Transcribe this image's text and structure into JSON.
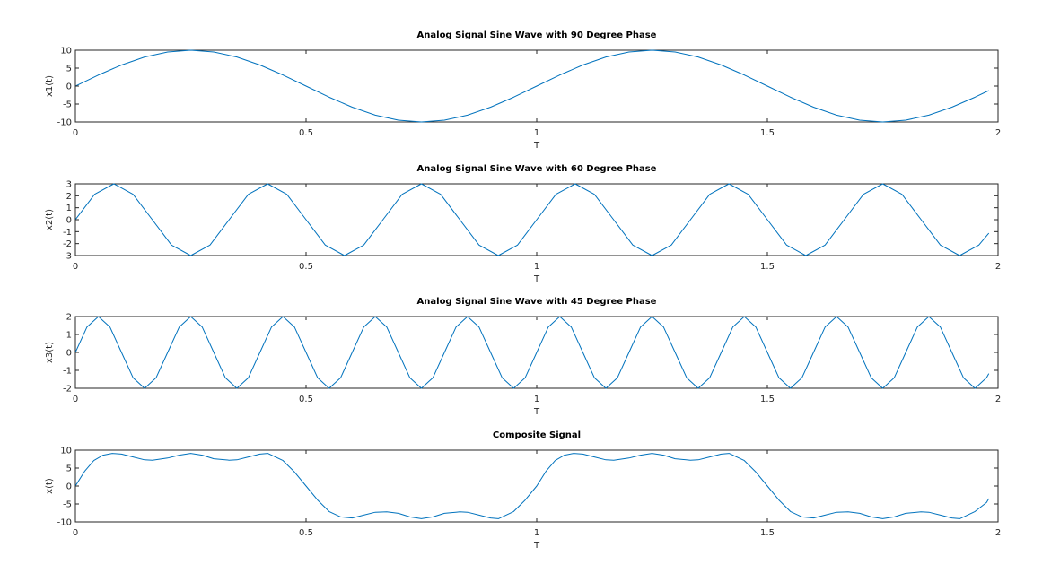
{
  "chart_data": [
    {
      "type": "line",
      "title": "Analog Signal Sine Wave with 90 Degree Phase",
      "xlabel": "T",
      "ylabel": "x1(t)",
      "xlim": [
        0,
        2
      ],
      "ylim": [
        -10,
        10
      ],
      "xticks": [
        0,
        0.5,
        1,
        1.5,
        2
      ],
      "xtick_labels": [
        "0",
        "0.5",
        "1",
        "1.5",
        "2"
      ],
      "yticks": [
        -10,
        -5,
        0,
        5,
        10
      ],
      "ytick_labels": [
        "-10",
        "-5",
        "0",
        "5",
        "10"
      ],
      "grid": false,
      "series": [
        {
          "color": "#0072bd",
          "x": [
            0,
            0.05,
            0.1,
            0.15,
            0.2,
            0.25,
            0.3,
            0.35,
            0.4,
            0.45,
            0.5,
            0.55,
            0.6,
            0.65,
            0.7,
            0.75,
            0.8,
            0.85,
            0.9,
            0.95,
            1.0,
            1.05,
            1.1,
            1.15,
            1.2,
            1.25,
            1.3,
            1.35,
            1.4,
            1.45,
            1.5,
            1.55,
            1.6,
            1.65,
            1.7,
            1.75,
            1.8,
            1.85,
            1.9,
            1.95,
            1.98
          ],
          "y": [
            0,
            3.09,
            5.88,
            8.09,
            9.51,
            10,
            9.51,
            8.09,
            5.88,
            3.09,
            0,
            -3.09,
            -5.88,
            -8.09,
            -9.51,
            -10,
            -9.51,
            -8.09,
            -5.88,
            -3.09,
            0,
            3.09,
            5.88,
            8.09,
            9.51,
            10,
            9.51,
            8.09,
            5.88,
            3.09,
            0,
            -3.09,
            -5.88,
            -8.09,
            -9.51,
            -10,
            -9.51,
            -8.09,
            -5.88,
            -3.09,
            -1.25
          ]
        }
      ]
    },
    {
      "type": "line",
      "title": "Analog Signal Sine Wave with 60 Degree Phase",
      "xlabel": "T",
      "ylabel": "x2(t)",
      "xlim": [
        0,
        2
      ],
      "ylim": [
        -3,
        3
      ],
      "xticks": [
        0,
        0.5,
        1,
        1.5,
        2
      ],
      "xtick_labels": [
        "0",
        "0.5",
        "1",
        "1.5",
        "2"
      ],
      "yticks": [
        -3,
        -2,
        -1,
        0,
        1,
        2,
        3
      ],
      "ytick_labels": [
        "-3",
        "-2",
        "-1",
        "0",
        "1",
        "2",
        "3"
      ],
      "grid": false,
      "series": [
        {
          "color": "#0072bd",
          "x": [
            0,
            0.0417,
            0.0833,
            0.125,
            0.1667,
            0.2083,
            0.25,
            0.2917,
            0.3333,
            0.375,
            0.4167,
            0.4583,
            0.5,
            0.5417,
            0.5833,
            0.625,
            0.6667,
            0.7083,
            0.75,
            0.7917,
            0.8333,
            0.875,
            0.9167,
            0.9583,
            1.0,
            1.0417,
            1.0833,
            1.125,
            1.1667,
            1.2083,
            1.25,
            1.2917,
            1.3333,
            1.375,
            1.4167,
            1.4583,
            1.5,
            1.5417,
            1.5833,
            1.625,
            1.6667,
            1.7083,
            1.75,
            1.7917,
            1.8333,
            1.875,
            1.9167,
            1.9583,
            1.98
          ],
          "y": [
            0,
            2.12,
            3,
            2.12,
            0,
            -2.12,
            -3,
            -2.12,
            0,
            2.12,
            3,
            2.12,
            0,
            -2.12,
            -3,
            -2.12,
            0,
            2.12,
            3,
            2.12,
            0,
            -2.12,
            -3,
            -2.12,
            0,
            2.12,
            3,
            2.12,
            0,
            -2.12,
            -3,
            -2.12,
            0,
            2.12,
            3,
            2.12,
            0,
            -2.12,
            -3,
            -2.12,
            0,
            2.12,
            3,
            2.12,
            0,
            -2.12,
            -3,
            -2.12,
            -1.13
          ]
        }
      ]
    },
    {
      "type": "line",
      "title": "Analog Signal Sine Wave with 45 Degree Phase",
      "xlabel": "T",
      "ylabel": "x3(t)",
      "xlim": [
        0,
        2
      ],
      "ylim": [
        -2,
        2
      ],
      "xticks": [
        0,
        0.5,
        1,
        1.5,
        2
      ],
      "xtick_labels": [
        "0",
        "0.5",
        "1",
        "1.5",
        "2"
      ],
      "yticks": [
        -2,
        -1,
        0,
        1,
        2
      ],
      "ytick_labels": [
        "-2",
        "-1",
        "0",
        "1",
        "2"
      ],
      "grid": false,
      "series": [
        {
          "color": "#0072bd",
          "x": [
            0,
            0.025,
            0.05,
            0.075,
            0.1,
            0.125,
            0.15,
            0.175,
            0.2,
            0.225,
            0.25,
            0.275,
            0.3,
            0.325,
            0.35,
            0.375,
            0.4,
            0.425,
            0.45,
            0.475,
            0.5,
            0.525,
            0.55,
            0.575,
            0.6,
            0.625,
            0.65,
            0.675,
            0.7,
            0.725,
            0.75,
            0.775,
            0.8,
            0.825,
            0.85,
            0.875,
            0.9,
            0.925,
            0.95,
            0.975,
            1.0,
            1.025,
            1.05,
            1.075,
            1.1,
            1.125,
            1.15,
            1.175,
            1.2,
            1.225,
            1.25,
            1.275,
            1.3,
            1.325,
            1.35,
            1.375,
            1.4,
            1.425,
            1.45,
            1.475,
            1.5,
            1.525,
            1.55,
            1.575,
            1.6,
            1.625,
            1.65,
            1.675,
            1.7,
            1.725,
            1.75,
            1.775,
            1.8,
            1.825,
            1.85,
            1.875,
            1.9,
            1.925,
            1.95,
            1.975,
            1.98
          ],
          "y": [
            0,
            1.41,
            2,
            1.41,
            0,
            -1.41,
            -2,
            -1.41,
            0,
            1.41,
            2,
            1.41,
            0,
            -1.41,
            -2,
            -1.41,
            0,
            1.41,
            2,
            1.41,
            0,
            -1.41,
            -2,
            -1.41,
            0,
            1.41,
            2,
            1.41,
            0,
            -1.41,
            -2,
            -1.41,
            0,
            1.41,
            2,
            1.41,
            0,
            -1.41,
            -2,
            -1.41,
            0,
            1.41,
            2,
            1.41,
            0,
            -1.41,
            -2,
            -1.41,
            0,
            1.41,
            2,
            1.41,
            0,
            -1.41,
            -2,
            -1.41,
            0,
            1.41,
            2,
            1.41,
            0,
            -1.41,
            -2,
            -1.41,
            0,
            1.41,
            2,
            1.41,
            0,
            -1.41,
            -2,
            -1.41,
            0,
            1.41,
            2,
            1.41,
            0,
            -1.41,
            -2,
            -1.41,
            -1.18
          ]
        }
      ]
    },
    {
      "type": "line",
      "title": "Composite Signal",
      "xlabel": "T",
      "ylabel": "x(t)",
      "xlim": [
        0,
        2
      ],
      "ylim": [
        -10,
        10
      ],
      "xticks": [
        0,
        0.5,
        1,
        1.5,
        2
      ],
      "xtick_labels": [
        "0",
        "0.5",
        "1",
        "1.5",
        "2"
      ],
      "yticks": [
        -10,
        -5,
        0,
        5,
        10
      ],
      "ytick_labels": [
        "-10",
        "-5",
        "0",
        "5",
        "10"
      ],
      "grid": false,
      "series": [
        {
          "color": "#0072bd",
          "x": [
            0,
            0.02,
            0.04,
            0.06,
            0.08,
            0.1,
            0.125,
            0.15,
            0.167,
            0.2,
            0.225,
            0.25,
            0.275,
            0.3,
            0.333,
            0.35,
            0.375,
            0.4,
            0.417,
            0.45,
            0.475,
            0.5,
            0.525,
            0.55,
            0.575,
            0.6,
            0.625,
            0.65,
            0.675,
            0.7,
            0.725,
            0.75,
            0.775,
            0.8,
            0.833,
            0.85,
            0.875,
            0.9,
            0.917,
            0.95,
            0.975,
            1.0,
            1.02,
            1.04,
            1.06,
            1.08,
            1.1,
            1.125,
            1.15,
            1.167,
            1.2,
            1.225,
            1.25,
            1.275,
            1.3,
            1.333,
            1.35,
            1.375,
            1.4,
            1.417,
            1.45,
            1.475,
            1.5,
            1.525,
            1.55,
            1.575,
            1.6,
            1.625,
            1.65,
            1.675,
            1.7,
            1.725,
            1.75,
            1.775,
            1.8,
            1.833,
            1.85,
            1.875,
            1.9,
            1.917,
            1.95,
            1.975,
            1.98
          ],
          "y": [
            0,
            4.1,
            7.1,
            8.6,
            9.1,
            8.9,
            8.1,
            7.3,
            7.2,
            7.8,
            8.6,
            9.1,
            8.6,
            7.6,
            7.2,
            7.3,
            8.1,
            8.9,
            9.1,
            7.1,
            3.9,
            0,
            -3.9,
            -7.1,
            -8.6,
            -8.9,
            -8.1,
            -7.3,
            -7.2,
            -7.6,
            -8.6,
            -9.1,
            -8.6,
            -7.6,
            -7.2,
            -7.3,
            -8.1,
            -8.9,
            -9.1,
            -7.1,
            -3.9,
            0,
            4.1,
            7.1,
            8.6,
            9.1,
            8.9,
            8.1,
            7.3,
            7.2,
            7.8,
            8.6,
            9.1,
            8.6,
            7.6,
            7.2,
            7.3,
            8.1,
            8.9,
            9.1,
            7.1,
            3.9,
            0,
            -3.9,
            -7.1,
            -8.6,
            -8.9,
            -8.1,
            -7.3,
            -7.2,
            -7.6,
            -8.6,
            -9.1,
            -8.6,
            -7.6,
            -7.2,
            -7.3,
            -8.1,
            -8.9,
            -9.1,
            -7.1,
            -4.6,
            -3.5
          ]
        }
      ]
    }
  ]
}
